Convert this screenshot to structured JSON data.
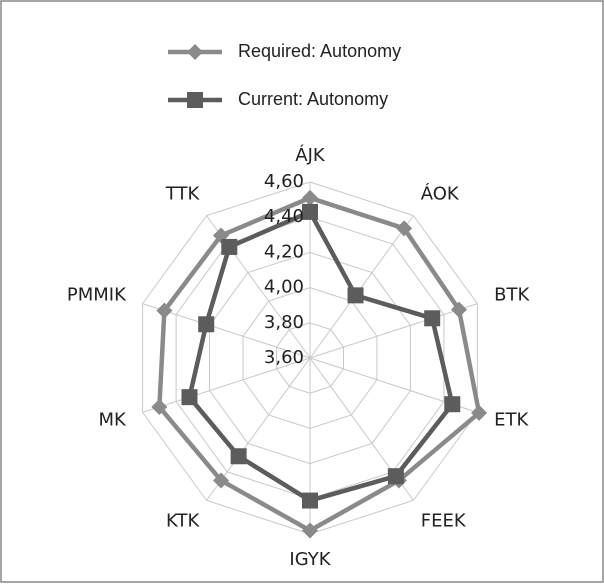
{
  "chart_data": {
    "type": "radar",
    "categories": [
      "ÁJK",
      "ÁOK",
      "BTK",
      "ETK",
      "FEEK",
      "IGYK",
      "KTK",
      "MK",
      "PMMIK",
      "TTK"
    ],
    "series": [
      {
        "name": "Required: Autonomy",
        "color": "#8a8a8a",
        "marker": "diamond",
        "values": [
          4.51,
          4.51,
          4.49,
          4.61,
          4.46,
          4.58,
          4.46,
          4.5,
          4.47,
          4.46
        ]
      },
      {
        "name": "Current: Autonomy",
        "color": "#5c5c5c",
        "marker": "square",
        "values": [
          4.43,
          4.04,
          4.33,
          4.45,
          4.43,
          4.41,
          4.29,
          4.32,
          4.22,
          4.38
        ]
      }
    ],
    "ylim": [
      3.6,
      4.6
    ],
    "yticks": [
      {
        "value": 3.6,
        "label": "3,60"
      },
      {
        "value": 3.8,
        "label": "3,80"
      },
      {
        "value": 4.0,
        "label": "4,00"
      },
      {
        "value": 4.2,
        "label": "4,20"
      },
      {
        "value": 4.4,
        "label": "4,40"
      },
      {
        "value": 4.6,
        "label": "4,60"
      }
    ],
    "grid": true,
    "legend": "top"
  }
}
